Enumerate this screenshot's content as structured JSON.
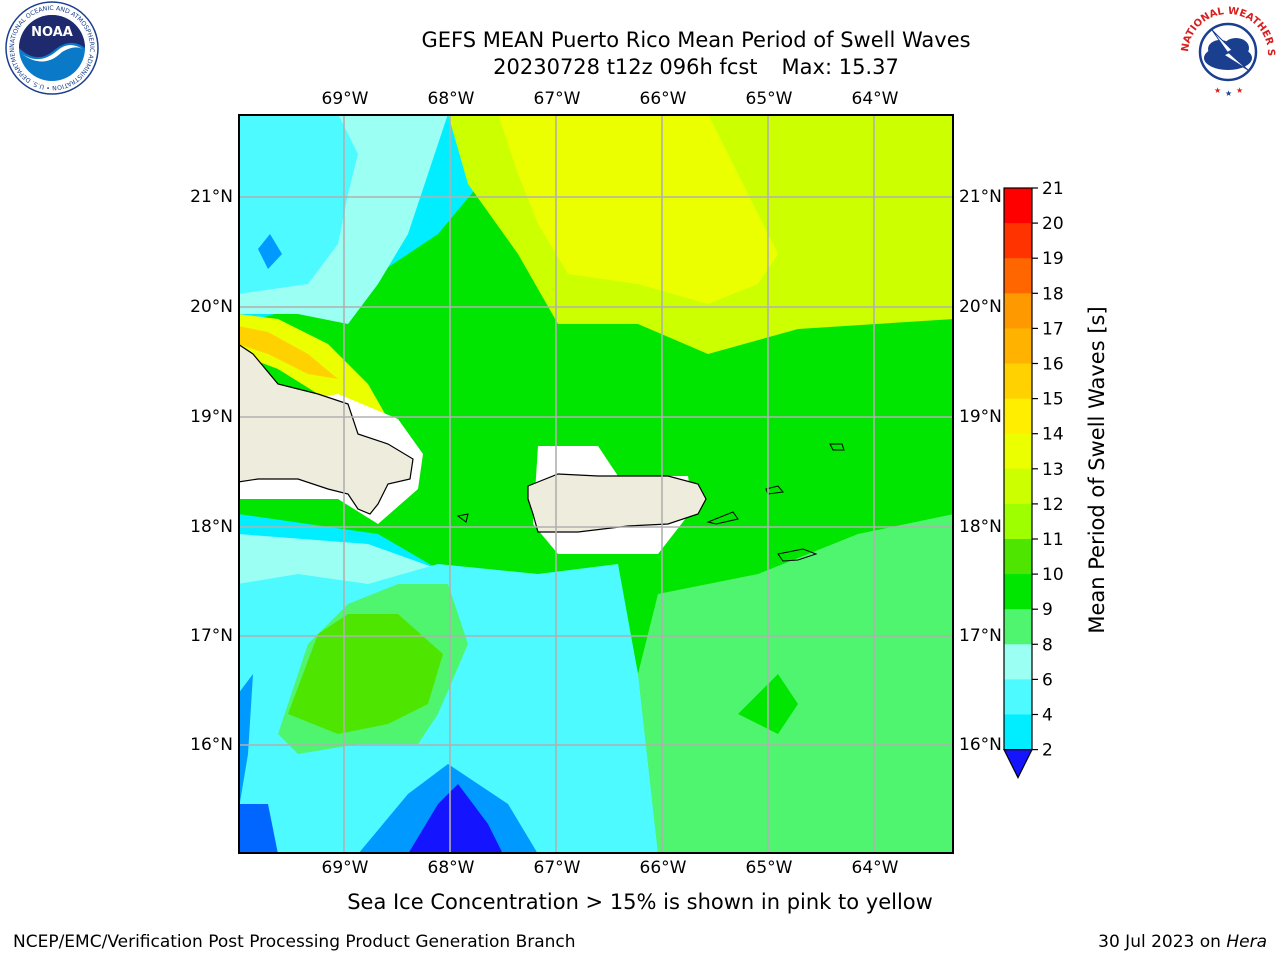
{
  "header": {
    "title_line1": "GEFS MEAN Puerto Rico Mean Period of Swell Waves",
    "title_date": "20230728 t12z 096h fcst",
    "title_max": "Max: 15.37"
  },
  "logos": {
    "left": {
      "name": "noaa-logo",
      "text": "NOAA",
      "ring_text": "NATIONAL OCEANIC AND ATMOSPHERIC ADMINISTRATION • U.S. DEPARTMENT OF COMMERCE"
    },
    "right": {
      "name": "nws-logo",
      "ring_text": "NATIONAL WEATHER SERVICE"
    }
  },
  "map": {
    "lon_labels": [
      "69°W",
      "68°W",
      "67°W",
      "66°W",
      "65°W",
      "64°W"
    ],
    "lat_labels": [
      "21°N",
      "20°N",
      "19°N",
      "18°N",
      "17°N",
      "16°N"
    ],
    "land_color": "#eeecdd",
    "grid_color": "#b0b0b0"
  },
  "colorbar": {
    "title": "Mean Period of Swell Waves [s]",
    "ticks": [
      "21",
      "20",
      "19",
      "18",
      "17",
      "16",
      "15",
      "14",
      "13",
      "12",
      "11",
      "10",
      "9",
      "8",
      "6",
      "4",
      "2"
    ],
    "colors": [
      "#ff0000",
      "#ff3300",
      "#ff6600",
      "#ff9900",
      "#ffb300",
      "#ffd100",
      "#ffee00",
      "#ecff00",
      "#ccff00",
      "#9eff00",
      "#4ee600",
      "#00e600",
      "#4ff56f",
      "#9cfff3",
      "#4dfaff",
      "#00eeff",
      "#0099ff",
      "#0066ff"
    ],
    "under_color": "#1414ff"
  },
  "footer": {
    "note": "Sea Ice Concentration > 15% is shown in pink to yellow",
    "left": "NCEP/EMC/Verification Post Processing Product Generation Branch",
    "date": "30 Jul 2023 on ",
    "host": "Hera"
  }
}
